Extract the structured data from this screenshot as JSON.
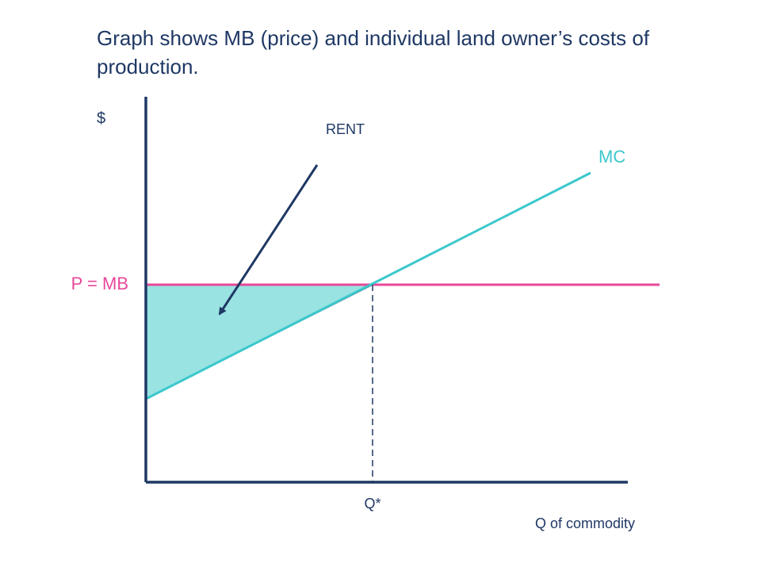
{
  "title": "Graph shows MB (price) and individual land owner’s costs of production.",
  "labels": {
    "y_axis": "$",
    "rent": "RENT",
    "mc": "MC",
    "price": "P = MB",
    "q_star": "Q*",
    "x_axis": "Q of commodity"
  }
}
